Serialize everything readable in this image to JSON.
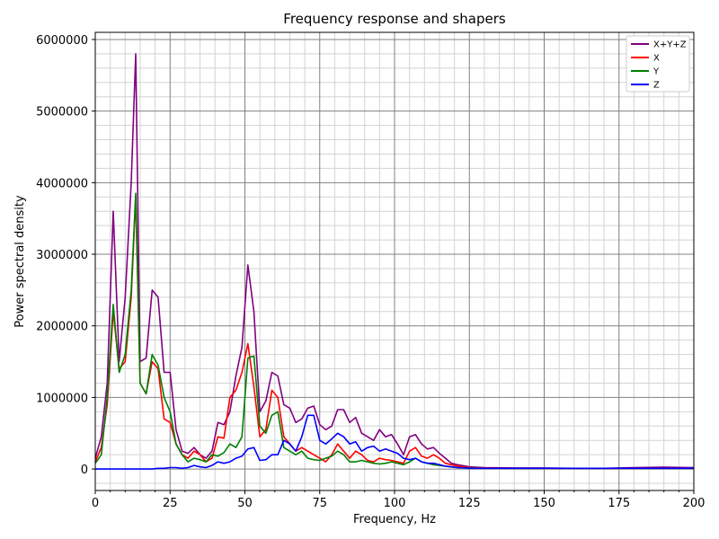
{
  "chart_data": {
    "type": "line",
    "title": "Frequency response and shapers",
    "xlabel": "Frequency, Hz",
    "ylabel": "Power spectral density",
    "xlim": [
      0,
      200
    ],
    "ylim": [
      -300000,
      6100000
    ],
    "xticks": [
      0,
      25,
      50,
      75,
      100,
      125,
      150,
      175,
      200
    ],
    "yticks": [
      0,
      1000000,
      2000000,
      3000000,
      4000000,
      5000000,
      6000000
    ],
    "grid": "major and minor",
    "legend_position": "top-right",
    "series": [
      {
        "name": "X+Y+Z",
        "color": "#800080",
        "x": [
          0,
          2,
          4,
          6,
          8,
          10,
          12,
          13.5,
          15,
          17,
          19,
          21,
          23,
          25,
          27,
          29,
          31,
          33,
          35,
          37,
          39,
          41,
          43,
          45,
          47,
          49,
          51,
          53,
          55,
          57,
          59,
          61,
          63,
          65,
          67,
          69,
          71,
          73,
          75,
          77,
          79,
          81,
          83,
          85,
          87,
          89,
          91,
          93,
          95,
          97,
          99,
          101,
          103,
          105,
          107,
          109,
          111,
          113,
          115,
          117,
          119,
          121,
          125,
          130,
          140,
          150,
          160,
          170,
          180,
          190,
          200
        ],
        "y": [
          150000,
          450000,
          1200000,
          3600000,
          1500000,
          2400000,
          4000000,
          5800000,
          1500000,
          1550000,
          2500000,
          2400000,
          1350000,
          1350000,
          550000,
          250000,
          220000,
          300000,
          200000,
          150000,
          250000,
          650000,
          620000,
          800000,
          1300000,
          1700000,
          2850000,
          2200000,
          800000,
          950000,
          1350000,
          1300000,
          900000,
          850000,
          650000,
          700000,
          850000,
          880000,
          620000,
          550000,
          600000,
          830000,
          830000,
          650000,
          720000,
          500000,
          450000,
          400000,
          550000,
          450000,
          480000,
          350000,
          200000,
          450000,
          480000,
          350000,
          280000,
          300000,
          220000,
          150000,
          80000,
          60000,
          30000,
          20000,
          15000,
          15000,
          10000,
          10000,
          20000,
          25000,
          20000
        ]
      },
      {
        "name": "X",
        "color": "#ff0000",
        "x": [
          0,
          2,
          4,
          6,
          8,
          10,
          12,
          13.5,
          15,
          17,
          19,
          21,
          23,
          25,
          27,
          29,
          31,
          33,
          35,
          37,
          39,
          41,
          43,
          45,
          47,
          49,
          51,
          53,
          55,
          57,
          59,
          61,
          63,
          65,
          67,
          69,
          71,
          73,
          75,
          77,
          79,
          81,
          83,
          85,
          87,
          89,
          91,
          93,
          95,
          97,
          99,
          101,
          103,
          105,
          107,
          109,
          111,
          113,
          115,
          117,
          119,
          121,
          125,
          130,
          140,
          150,
          160,
          170,
          180,
          190,
          200
        ],
        "y": [
          100000,
          300000,
          900000,
          2200000,
          1400000,
          1500000,
          2400000,
          3800000,
          1200000,
          1050000,
          1500000,
          1400000,
          700000,
          650000,
          350000,
          200000,
          150000,
          250000,
          200000,
          100000,
          150000,
          450000,
          430000,
          1000000,
          1100000,
          1350000,
          1750000,
          1150000,
          450000,
          550000,
          1100000,
          1000000,
          450000,
          350000,
          250000,
          300000,
          250000,
          200000,
          150000,
          100000,
          200000,
          350000,
          250000,
          150000,
          250000,
          200000,
          120000,
          100000,
          150000,
          130000,
          120000,
          100000,
          80000,
          250000,
          300000,
          180000,
          150000,
          200000,
          150000,
          80000,
          60000,
          40000,
          20000,
          15000,
          10000,
          10000,
          10000,
          10000,
          10000,
          10000,
          10000
        ]
      },
      {
        "name": "Y",
        "color": "#008000",
        "x": [
          0,
          2,
          4,
          6,
          8,
          10,
          12,
          13.5,
          15,
          17,
          19,
          21,
          23,
          25,
          27,
          29,
          31,
          33,
          35,
          37,
          39,
          41,
          43,
          45,
          47,
          49,
          51,
          53,
          55,
          57,
          59,
          61,
          63,
          65,
          67,
          69,
          71,
          73,
          75,
          77,
          79,
          81,
          83,
          85,
          87,
          89,
          91,
          93,
          95,
          97,
          99,
          101,
          103,
          105,
          107,
          109,
          111,
          113,
          115,
          117,
          119,
          121,
          125,
          130,
          140,
          150,
          160,
          170,
          180,
          190,
          200
        ],
        "y": [
          80000,
          200000,
          1000000,
          2300000,
          1350000,
          1600000,
          2500000,
          3850000,
          1200000,
          1050000,
          1600000,
          1450000,
          1000000,
          800000,
          350000,
          200000,
          100000,
          150000,
          130000,
          100000,
          200000,
          180000,
          230000,
          350000,
          300000,
          450000,
          1550000,
          1580000,
          600000,
          500000,
          750000,
          800000,
          300000,
          250000,
          200000,
          250000,
          150000,
          130000,
          120000,
          150000,
          180000,
          250000,
          200000,
          100000,
          100000,
          120000,
          100000,
          80000,
          70000,
          80000,
          100000,
          80000,
          60000,
          100000,
          150000,
          100000,
          80000,
          60000,
          50000,
          40000,
          30000,
          20000,
          15000,
          10000,
          10000,
          10000,
          10000,
          10000,
          10000,
          10000,
          10000
        ]
      },
      {
        "name": "Z",
        "color": "#0000ff",
        "x": [
          0,
          2,
          4,
          6,
          8,
          10,
          12,
          13.5,
          15,
          17,
          19,
          21,
          23,
          25,
          27,
          29,
          31,
          33,
          35,
          37,
          39,
          41,
          43,
          45,
          47,
          49,
          51,
          53,
          55,
          57,
          59,
          61,
          63,
          65,
          67,
          69,
          71,
          73,
          75,
          77,
          79,
          81,
          83,
          85,
          87,
          89,
          91,
          93,
          95,
          97,
          99,
          101,
          103,
          105,
          107,
          109,
          111,
          113,
          115,
          117,
          119,
          121,
          125,
          130,
          140,
          150,
          160,
          170,
          180,
          190,
          200
        ],
        "y": [
          0,
          0,
          0,
          0,
          0,
          0,
          0,
          0,
          0,
          0,
          0,
          10000,
          10000,
          20000,
          20000,
          10000,
          20000,
          50000,
          30000,
          20000,
          50000,
          100000,
          80000,
          100000,
          150000,
          180000,
          280000,
          300000,
          120000,
          130000,
          200000,
          200000,
          400000,
          350000,
          250000,
          450000,
          750000,
          750000,
          400000,
          350000,
          420000,
          500000,
          450000,
          350000,
          380000,
          250000,
          300000,
          320000,
          250000,
          280000,
          250000,
          220000,
          150000,
          130000,
          150000,
          100000,
          80000,
          80000,
          60000,
          40000,
          30000,
          20000,
          10000,
          10000,
          10000,
          10000,
          10000,
          10000,
          10000,
          10000,
          10000
        ]
      }
    ]
  }
}
